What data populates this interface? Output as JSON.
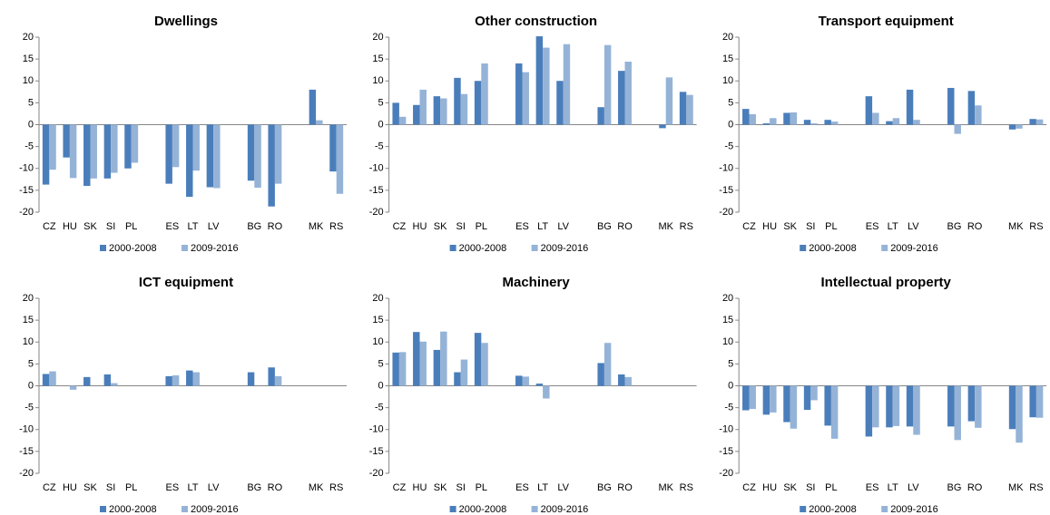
{
  "chart_data": [
    {
      "type": "bar",
      "title": "Dwellings",
      "categories": [
        "CZ",
        "HU",
        "SK",
        "SI",
        "PL",
        null,
        "ES",
        "LT",
        "LV",
        null,
        "BG",
        "RO",
        null,
        "MK",
        "RS"
      ],
      "series": [
        {
          "name": "2000-2008",
          "color": "#4a7ebb",
          "values": [
            -13.7,
            -7.5,
            -14,
            -12.3,
            -10,
            null,
            -13.5,
            -16.5,
            -14.3,
            null,
            -12.8,
            -18.7,
            null,
            8,
            -10.7
          ]
        },
        {
          "name": "2009-2016",
          "color": "#95b3d7",
          "values": [
            -10.3,
            -12.2,
            -12.3,
            -11,
            -8.7,
            null,
            -9.7,
            -10.5,
            -14.5,
            null,
            -14.4,
            -13.5,
            null,
            1,
            -15.8
          ]
        }
      ],
      "ylim": [
        -20,
        20
      ],
      "yticks": [
        -20,
        -15,
        -10,
        -5,
        0,
        5,
        10,
        15,
        20
      ],
      "grid": false
    },
    {
      "type": "bar",
      "title": "Other construction",
      "categories": [
        "CZ",
        "HU",
        "SK",
        "SI",
        "PL",
        null,
        "ES",
        "LT",
        "LV",
        null,
        "BG",
        "RO",
        null,
        "MK",
        "RS"
      ],
      "series": [
        {
          "name": "2000-2008",
          "color": "#4a7ebb",
          "values": [
            5,
            4.5,
            6.5,
            10.7,
            10,
            null,
            14,
            20.2,
            10,
            null,
            4,
            12.3,
            null,
            -0.8,
            7.5
          ]
        },
        {
          "name": "2009-2016",
          "color": "#95b3d7",
          "values": [
            1.8,
            8,
            6,
            7,
            14,
            null,
            12,
            17.6,
            18.4,
            null,
            18.2,
            14.4,
            null,
            10.8,
            6.8
          ]
        }
      ],
      "ylim": [
        -20,
        20
      ],
      "yticks": [
        -20,
        -15,
        -10,
        -5,
        0,
        5,
        10,
        15,
        20
      ],
      "grid": false
    },
    {
      "type": "bar",
      "title": "Transport equipment",
      "categories": [
        "CZ",
        "HU",
        "SK",
        "SI",
        "PL",
        null,
        "ES",
        "LT",
        "LV",
        null,
        "BG",
        "RO",
        null,
        "MK",
        "RS"
      ],
      "series": [
        {
          "name": "2000-2008",
          "color": "#4a7ebb",
          "values": [
            3.6,
            0.3,
            2.7,
            1.1,
            1.1,
            null,
            6.5,
            0.8,
            8,
            null,
            8.4,
            7.7,
            null,
            -1.1,
            1.3
          ]
        },
        {
          "name": "2009-2016",
          "color": "#95b3d7",
          "values": [
            2.4,
            1.5,
            2.8,
            0.3,
            0.7,
            null,
            2.7,
            1.5,
            1.1,
            null,
            -2.1,
            4.4,
            null,
            -0.9,
            1.2
          ]
        }
      ],
      "ylim": [
        -20,
        20
      ],
      "yticks": [
        -20,
        -15,
        -10,
        -5,
        0,
        5,
        10,
        15,
        20
      ],
      "grid": false
    },
    {
      "type": "bar",
      "title": "ICT equipment",
      "categories": [
        "CZ",
        "HU",
        "SK",
        "SI",
        "PL",
        null,
        "ES",
        "LT",
        "LV",
        null,
        "BG",
        "RO",
        null,
        "MK",
        "RS"
      ],
      "series": [
        {
          "name": "2000-2008",
          "color": "#4a7ebb",
          "values": [
            2.7,
            0,
            2,
            2.6,
            0,
            null,
            2.2,
            3.5,
            0,
            null,
            3.1,
            4.2,
            null,
            0,
            0
          ]
        },
        {
          "name": "2009-2016",
          "color": "#95b3d7",
          "values": [
            3.3,
            -0.9,
            0,
            0.6,
            0,
            null,
            2.4,
            3.1,
            0,
            null,
            0,
            2.2,
            null,
            0,
            0
          ]
        }
      ],
      "ylim": [
        -20,
        20
      ],
      "yticks": [
        -20,
        -15,
        -10,
        -5,
        0,
        5,
        10,
        15,
        20
      ],
      "grid": false
    },
    {
      "type": "bar",
      "title": "Machinery",
      "categories": [
        "CZ",
        "HU",
        "SK",
        "SI",
        "PL",
        null,
        "ES",
        "LT",
        "LV",
        null,
        "BG",
        "RO",
        null,
        "MK",
        "RS"
      ],
      "series": [
        {
          "name": "2000-2008",
          "color": "#4a7ebb",
          "values": [
            7.6,
            12.3,
            8.2,
            3.1,
            12.1,
            null,
            2.3,
            0.5,
            0,
            null,
            5.2,
            2.6,
            null,
            0,
            0
          ]
        },
        {
          "name": "2009-2016",
          "color": "#95b3d7",
          "values": [
            7.7,
            10.1,
            12.4,
            6,
            9.8,
            null,
            2.1,
            -2.9,
            0,
            null,
            9.8,
            2,
            null,
            0,
            0
          ]
        }
      ],
      "ylim": [
        -20,
        20
      ],
      "yticks": [
        -20,
        -15,
        -10,
        -5,
        0,
        5,
        10,
        15,
        20
      ],
      "grid": false
    },
    {
      "type": "bar",
      "title": "Intellectual property",
      "categories": [
        "CZ",
        "HU",
        "SK",
        "SI",
        "PL",
        null,
        "ES",
        "LT",
        "LV",
        null,
        "BG",
        "RO",
        null,
        "MK",
        "RS"
      ],
      "series": [
        {
          "name": "2000-2008",
          "color": "#4a7ebb",
          "values": [
            -5.6,
            -6.6,
            -8.3,
            -5.5,
            -9.1,
            null,
            -11.6,
            -9.5,
            -9.3,
            null,
            -9.3,
            -8.1,
            null,
            -9.9,
            -7.2
          ]
        },
        {
          "name": "2009-2016",
          "color": "#95b3d7",
          "values": [
            -5.3,
            -6.1,
            -9.8,
            -3.3,
            -12.1,
            null,
            -9.5,
            -9.2,
            -11.2,
            null,
            -12.4,
            -9.6,
            null,
            -13,
            -7.3
          ]
        }
      ],
      "ylim": [
        -20,
        20
      ],
      "yticks": [
        -20,
        -15,
        -10,
        -5,
        0,
        5,
        10,
        15,
        20
      ],
      "grid": false
    }
  ]
}
